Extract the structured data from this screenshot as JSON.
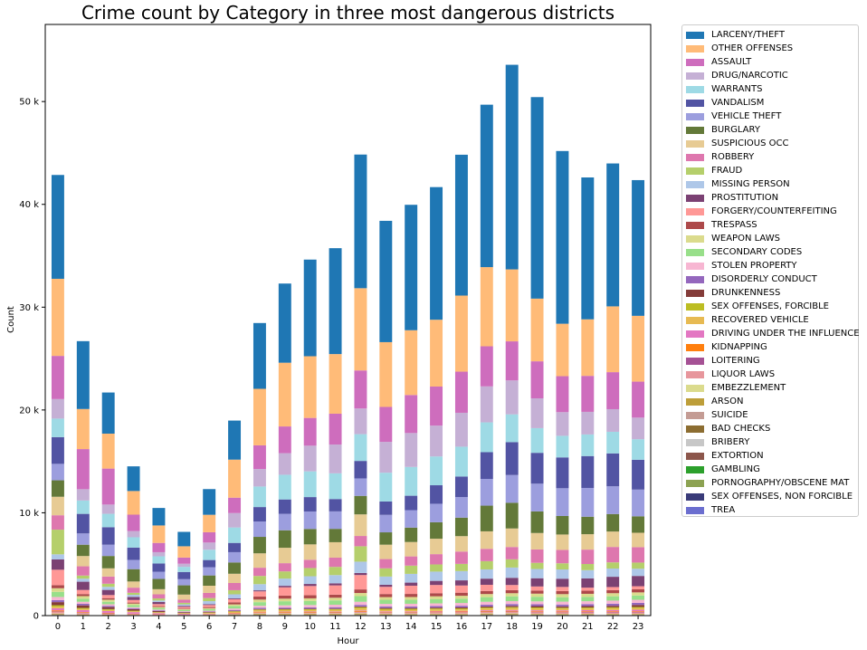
{
  "chart_data": {
    "type": "bar",
    "stacked": true,
    "title": "Crime count by Category in three most dangerous districts",
    "xlabel": "Hour",
    "ylabel": "Count",
    "ylim": [
      0,
      57500
    ],
    "yticks": [
      0,
      10000,
      20000,
      30000,
      40000,
      50000
    ],
    "ytick_labels": [
      "0",
      "10 k",
      "20 k",
      "30 k",
      "40 k",
      "50 k"
    ],
    "categories": [
      "0",
      "1",
      "2",
      "3",
      "4",
      "5",
      "6",
      "7",
      "8",
      "9",
      "10",
      "11",
      "12",
      "13",
      "14",
      "15",
      "16",
      "17",
      "18",
      "19",
      "20",
      "21",
      "22",
      "23"
    ],
    "legend_position": "outside-right",
    "grid": false,
    "series": [
      {
        "name": "TREA",
        "color": "#6b6ecf",
        "values": [
          10,
          5,
          5,
          3,
          2,
          2,
          3,
          5,
          8,
          8,
          8,
          8,
          10,
          8,
          8,
          8,
          8,
          10,
          10,
          8,
          8,
          8,
          8,
          8
        ]
      },
      {
        "name": "SEX OFFENSES, NON FORCIBLE",
        "color": "#393b79",
        "values": [
          15,
          8,
          6,
          4,
          3,
          3,
          5,
          8,
          12,
          12,
          12,
          12,
          15,
          12,
          12,
          12,
          12,
          15,
          15,
          12,
          12,
          12,
          12,
          12
        ]
      },
      {
        "name": "PORNOGRAPHY/OBSCENE MAT",
        "color": "#8ca252",
        "values": [
          15,
          8,
          6,
          4,
          3,
          3,
          5,
          8,
          12,
          12,
          12,
          12,
          15,
          12,
          12,
          12,
          12,
          15,
          15,
          12,
          12,
          12,
          12,
          12
        ]
      },
      {
        "name": "GAMBLING",
        "color": "#2ca02c",
        "values": [
          15,
          8,
          6,
          4,
          3,
          3,
          5,
          8,
          12,
          12,
          12,
          12,
          15,
          12,
          12,
          12,
          12,
          15,
          15,
          12,
          12,
          12,
          12,
          12
        ]
      },
      {
        "name": "EXTORTION",
        "color": "#8c564b",
        "values": [
          15,
          8,
          6,
          4,
          3,
          3,
          5,
          8,
          12,
          12,
          12,
          12,
          15,
          12,
          12,
          12,
          12,
          15,
          15,
          12,
          12,
          12,
          12,
          12
        ]
      },
      {
        "name": "BRIBERY",
        "color": "#c7c7c7",
        "values": [
          15,
          8,
          6,
          4,
          3,
          3,
          5,
          8,
          12,
          12,
          12,
          12,
          15,
          12,
          12,
          12,
          12,
          15,
          15,
          12,
          12,
          12,
          12,
          12
        ]
      },
      {
        "name": "BAD CHECKS",
        "color": "#8c6d31",
        "values": [
          20,
          10,
          8,
          5,
          4,
          4,
          6,
          10,
          15,
          15,
          15,
          15,
          20,
          15,
          15,
          15,
          15,
          20,
          20,
          15,
          15,
          15,
          15,
          15
        ]
      },
      {
        "name": "SUICIDE",
        "color": "#c49c94",
        "values": [
          20,
          10,
          8,
          5,
          4,
          4,
          6,
          10,
          15,
          15,
          15,
          15,
          20,
          15,
          15,
          15,
          15,
          20,
          20,
          15,
          15,
          15,
          15,
          15
        ]
      },
      {
        "name": "ARSON",
        "color": "#bd9e39",
        "values": [
          60,
          50,
          40,
          30,
          25,
          25,
          30,
          50,
          70,
          70,
          70,
          70,
          80,
          60,
          60,
          60,
          60,
          80,
          80,
          60,
          60,
          60,
          60,
          60
        ]
      },
      {
        "name": "EMBEZZLEMENT",
        "color": "#dbdb8d",
        "values": [
          25,
          10,
          8,
          5,
          4,
          4,
          6,
          10,
          30,
          30,
          30,
          30,
          40,
          30,
          30,
          30,
          30,
          30,
          30,
          25,
          20,
          20,
          20,
          20
        ]
      },
      {
        "name": "LIQUOR LAWS",
        "color": "#e7969c",
        "values": [
          150,
          120,
          90,
          60,
          40,
          30,
          30,
          40,
          60,
          70,
          80,
          90,
          100,
          100,
          100,
          110,
          110,
          120,
          130,
          130,
          130,
          130,
          130,
          130
        ]
      },
      {
        "name": "LOITERING",
        "color": "#a55194",
        "values": [
          50,
          40,
          30,
          20,
          15,
          10,
          10,
          15,
          20,
          20,
          20,
          20,
          30,
          30,
          30,
          30,
          30,
          30,
          30,
          30,
          30,
          40,
          40,
          40
        ]
      },
      {
        "name": "KIDNAPPING",
        "color": "#ff7f0e",
        "values": [
          100,
          60,
          50,
          40,
          30,
          20,
          30,
          40,
          60,
          60,
          60,
          60,
          70,
          60,
          60,
          60,
          70,
          70,
          70,
          70,
          70,
          70,
          70,
          70
        ]
      },
      {
        "name": "DRIVING UNDER THE INFLUENCE",
        "color": "#e377c2",
        "values": [
          200,
          200,
          180,
          150,
          100,
          60,
          40,
          40,
          40,
          40,
          40,
          40,
          50,
          50,
          50,
          60,
          60,
          70,
          80,
          100,
          100,
          110,
          120,
          150
        ]
      },
      {
        "name": "RECOVERED VEHICLE",
        "color": "#e7ba52",
        "values": [
          150,
          100,
          100,
          80,
          60,
          50,
          70,
          100,
          130,
          140,
          140,
          140,
          200,
          140,
          140,
          150,
          150,
          160,
          180,
          180,
          160,
          160,
          160,
          160
        ]
      },
      {
        "name": "SEX OFFENSES, FORCIBLE",
        "color": "#bcbd22",
        "values": [
          150,
          100,
          80,
          60,
          40,
          30,
          40,
          60,
          80,
          80,
          80,
          80,
          120,
          90,
          90,
          90,
          90,
          100,
          100,
          100,
          100,
          100,
          110,
          110
        ]
      },
      {
        "name": "DRUNKENNESS",
        "color": "#843c39",
        "values": [
          300,
          250,
          200,
          150,
          100,
          70,
          50,
          50,
          50,
          50,
          60,
          60,
          80,
          80,
          80,
          90,
          100,
          110,
          120,
          130,
          130,
          140,
          150,
          200
        ]
      },
      {
        "name": "DISORDERLY CONDUCT",
        "color": "#9467bd",
        "values": [
          200,
          150,
          120,
          90,
          70,
          50,
          50,
          80,
          120,
          120,
          120,
          130,
          150,
          150,
          150,
          150,
          160,
          170,
          180,
          180,
          180,
          190,
          200,
          200
        ]
      },
      {
        "name": "STOLEN PROPERTY",
        "color": "#f7b6d2",
        "values": [
          300,
          200,
          150,
          100,
          80,
          60,
          80,
          140,
          200,
          220,
          230,
          240,
          300,
          250,
          260,
          260,
          270,
          280,
          280,
          280,
          280,
          280,
          300,
          300
        ]
      },
      {
        "name": "SECONDARY CODES",
        "color": "#98df8a",
        "values": [
          500,
          300,
          250,
          200,
          150,
          120,
          150,
          250,
          350,
          400,
          400,
          420,
          550,
          400,
          400,
          420,
          420,
          450,
          470,
          450,
          430,
          420,
          420,
          420
        ]
      },
      {
        "name": "WEAPON LAWS",
        "color": "#dbdb8d",
        "values": [
          350,
          250,
          200,
          150,
          100,
          80,
          100,
          150,
          250,
          250,
          250,
          260,
          300,
          260,
          260,
          270,
          280,
          300,
          300,
          300,
          300,
          300,
          300,
          300
        ]
      },
      {
        "name": "TRESPASS",
        "color": "#ad494a",
        "values": [
          300,
          200,
          150,
          100,
          80,
          60,
          100,
          200,
          300,
          300,
          300,
          300,
          350,
          300,
          300,
          300,
          300,
          300,
          300,
          300,
          300,
          300,
          300,
          300
        ]
      },
      {
        "name": "FORGERY/COUNTERFEITING",
        "color": "#ff9896",
        "values": [
          1500,
          400,
          300,
          250,
          200,
          150,
          200,
          300,
          500,
          800,
          900,
          900,
          1400,
          700,
          800,
          800,
          700,
          600,
          500,
          400,
          400,
          300,
          300,
          300
        ]
      },
      {
        "name": "PROSTITUTION",
        "color": "#7b4173",
        "values": [
          1000,
          800,
          500,
          300,
          200,
          100,
          80,
          80,
          100,
          150,
          200,
          200,
          200,
          200,
          300,
          400,
          500,
          600,
          700,
          800,
          800,
          900,
          1000,
          1000
        ]
      },
      {
        "name": "MISSING PERSON",
        "color": "#aec7e8",
        "values": [
          500,
          300,
          300,
          200,
          150,
          150,
          300,
          400,
          600,
          700,
          750,
          800,
          1100,
          800,
          850,
          900,
          900,
          900,
          1000,
          900,
          900,
          800,
          800,
          700
        ]
      },
      {
        "name": "FRAUD",
        "color": "#b5cf6b",
        "values": [
          2400,
          300,
          300,
          200,
          200,
          150,
          300,
          400,
          800,
          700,
          800,
          800,
          1500,
          800,
          800,
          700,
          700,
          800,
          800,
          600,
          600,
          600,
          600,
          600
        ]
      },
      {
        "name": "ROBBERY",
        "color": "#de77ae",
        "values": [
          1400,
          900,
          700,
          500,
          400,
          300,
          500,
          700,
          800,
          800,
          800,
          900,
          1000,
          900,
          900,
          1000,
          1200,
          1200,
          1200,
          1300,
          1300,
          1400,
          1500,
          1500
        ]
      },
      {
        "name": "SUSPICIOUS OCC",
        "color": "#e7cb94",
        "values": [
          1800,
          1000,
          800,
          600,
          500,
          500,
          700,
          900,
          1400,
          1500,
          1500,
          1500,
          2100,
          1400,
          1400,
          1500,
          1500,
          1700,
          1800,
          1600,
          1500,
          1500,
          1500,
          1400
        ]
      },
      {
        "name": "BURGLARY",
        "color": "#637939",
        "values": [
          1600,
          1100,
          1200,
          1200,
          1000,
          900,
          1000,
          1100,
          1600,
          1700,
          1500,
          1300,
          1800,
          1200,
          1400,
          1600,
          1800,
          2500,
          2500,
          2100,
          1800,
          1700,
          1700,
          1600
        ]
      },
      {
        "name": "VEHICLE THEFT",
        "color": "#9c9ede",
        "values": [
          1600,
          1100,
          1100,
          900,
          700,
          600,
          800,
          1000,
          1500,
          1600,
          1700,
          1700,
          1700,
          1700,
          1700,
          1800,
          2000,
          2600,
          2700,
          2700,
          2700,
          2800,
          2700,
          2600
        ]
      },
      {
        "name": "VANDALISM",
        "color": "#5254a3",
        "values": [
          2600,
          1900,
          1700,
          1200,
          800,
          700,
          700,
          900,
          1400,
          1400,
          1400,
          1200,
          1700,
          1300,
          1400,
          1800,
          2000,
          2600,
          3200,
          3000,
          3000,
          3100,
          3200,
          2900
        ]
      },
      {
        "name": "WARRANTS",
        "color": "#9edae5",
        "values": [
          1800,
          1300,
          1300,
          1000,
          700,
          500,
          1000,
          1500,
          2000,
          2400,
          2500,
          2500,
          2600,
          2800,
          2800,
          2800,
          2900,
          2900,
          2700,
          2400,
          2100,
          2100,
          2100,
          2000
        ]
      },
      {
        "name": "DRUG/NARCOTIC",
        "color": "#c5b0d5",
        "values": [
          1900,
          1100,
          900,
          600,
          400,
          300,
          700,
          1400,
          1700,
          2100,
          2500,
          2800,
          2500,
          3000,
          3300,
          3000,
          3300,
          3500,
          3300,
          2900,
          2300,
          2200,
          2200,
          2100
        ]
      },
      {
        "name": "ASSAULT",
        "color": "#ce6dbd",
        "values": [
          4200,
          3900,
          3500,
          1600,
          900,
          600,
          1000,
          1500,
          2300,
          2600,
          2700,
          3000,
          3700,
          3400,
          3700,
          3800,
          4000,
          3900,
          3800,
          3600,
          3500,
          3500,
          3600,
          3500
        ]
      },
      {
        "name": "OTHER OFFENSES",
        "color": "#ffbb78",
        "values": [
          7500,
          3900,
          3400,
          2300,
          1700,
          1100,
          1700,
          3700,
          5500,
          6200,
          6000,
          5800,
          8000,
          6300,
          6300,
          6500,
          7400,
          7700,
          7000,
          6100,
          5100,
          5500,
          6400,
          6400
        ]
      },
      {
        "name": "LARCENY/THEFT",
        "color": "#1f77b4",
        "values": [
          10100,
          6600,
          4000,
          2400,
          1700,
          1400,
          2500,
          3800,
          6400,
          7700,
          9400,
          10300,
          13000,
          11800,
          12200,
          12900,
          13700,
          15800,
          19900,
          19600,
          16800,
          13800,
          13900,
          13200
        ]
      }
    ]
  }
}
